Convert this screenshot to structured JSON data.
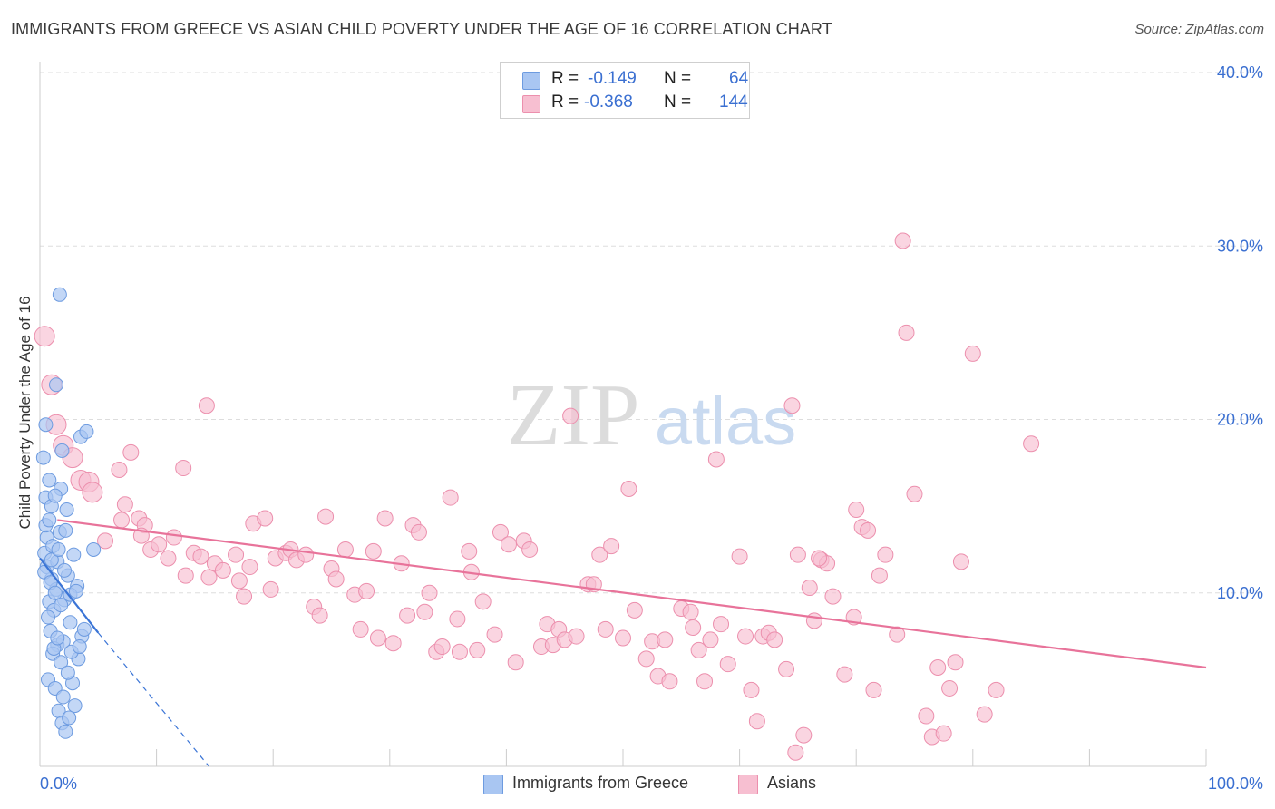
{
  "title": "IMMIGRANTS FROM GREECE VS ASIAN CHILD POVERTY UNDER THE AGE OF 16 CORRELATION CHART",
  "source": "Source: ZipAtlas.com",
  "watermark": {
    "zip": "ZIP",
    "atlas": "atlas"
  },
  "legend": {
    "r_label": "R =",
    "n_label": "N =",
    "rows": [
      {
        "r": "-0.149",
        "n": "64",
        "color": "#a9c6f2",
        "border": "#6d9be0"
      },
      {
        "r": "-0.368",
        "n": "144",
        "color": "#f7bfd1",
        "border": "#ec8fad"
      }
    ]
  },
  "bottom_legend": [
    {
      "label": "Immigrants from Greece",
      "color": "#a9c6f2",
      "border": "#6d9be0"
    },
    {
      "label": "Asians",
      "color": "#f7bfd1",
      "border": "#ec8fad"
    }
  ],
  "chart_data": {
    "type": "scatter",
    "title": "IMMIGRANTS FROM GREECE VS ASIAN CHILD POVERTY UNDER THE AGE OF 16 CORRELATION CHART",
    "xlabel": "",
    "ylabel": "Child Poverty Under the Age of 16",
    "xlim": [
      0,
      100
    ],
    "ylim": [
      0,
      40
    ],
    "x_tick_labels": [
      "0.0%",
      "100.0%"
    ],
    "y_ticks": [
      10,
      20,
      30,
      40
    ],
    "y_tick_labels": [
      "10.0%",
      "20.0%",
      "30.0%",
      "40.0%"
    ],
    "grid": true,
    "series": [
      {
        "name": "Immigrants from Greece",
        "color": "#a9c6f2",
        "stroke": "#6d9be0",
        "trend_color": "#3a74d6",
        "trend": {
          "x0": 0,
          "y0": 12.0,
          "x1": 5,
          "y1": 7.7,
          "dash_to_x": 14.5,
          "dash_to_y": 0
        },
        "points": [
          [
            0.3,
            17.8
          ],
          [
            0.5,
            15.5
          ],
          [
            0.4,
            12.3
          ],
          [
            0.6,
            11.5
          ],
          [
            1.0,
            10.8
          ],
          [
            0.8,
            9.5
          ],
          [
            1.2,
            9.0
          ],
          [
            0.9,
            7.8
          ],
          [
            1.5,
            7.0
          ],
          [
            1.1,
            6.5
          ],
          [
            1.8,
            6.0
          ],
          [
            0.7,
            5.0
          ],
          [
            1.3,
            4.5
          ],
          [
            2.0,
            4.0
          ],
          [
            1.6,
            3.2
          ],
          [
            1.9,
            2.5
          ],
          [
            2.2,
            2.0
          ],
          [
            2.5,
            2.8
          ],
          [
            3.0,
            3.5
          ],
          [
            2.8,
            4.8
          ],
          [
            3.3,
            6.2
          ],
          [
            3.6,
            7.5
          ],
          [
            2.6,
            8.3
          ],
          [
            2.1,
            9.6
          ],
          [
            1.4,
            10.2
          ],
          [
            2.4,
            11.0
          ],
          [
            3.2,
            10.4
          ],
          [
            2.9,
            12.2
          ],
          [
            4.6,
            12.5
          ],
          [
            1.7,
            13.5
          ],
          [
            2.3,
            14.8
          ],
          [
            1.8,
            16.0
          ],
          [
            1.9,
            18.2
          ],
          [
            3.5,
            19.0
          ],
          [
            4.0,
            19.3
          ],
          [
            1.4,
            22.0
          ],
          [
            1.7,
            27.2
          ],
          [
            0.5,
            19.7
          ],
          [
            0.8,
            16.5
          ],
          [
            1.0,
            15.0
          ],
          [
            0.6,
            13.2
          ],
          [
            1.1,
            12.7
          ],
          [
            1.5,
            11.8
          ],
          [
            0.4,
            11.2
          ],
          [
            0.9,
            10.6
          ],
          [
            1.3,
            10.0
          ],
          [
            1.8,
            9.3
          ],
          [
            2.6,
            9.9
          ],
          [
            3.1,
            10.1
          ],
          [
            0.7,
            8.6
          ],
          [
            2.0,
            7.2
          ],
          [
            1.2,
            6.8
          ],
          [
            2.7,
            6.6
          ],
          [
            3.4,
            6.9
          ],
          [
            3.8,
            7.9
          ],
          [
            1.0,
            11.9
          ],
          [
            1.6,
            12.5
          ],
          [
            0.5,
            13.9
          ],
          [
            2.2,
            13.6
          ],
          [
            1.3,
            15.6
          ],
          [
            0.8,
            14.2
          ],
          [
            2.1,
            11.3
          ],
          [
            1.5,
            7.4
          ],
          [
            2.4,
            5.4
          ]
        ]
      },
      {
        "name": "Asians",
        "color": "#f7bfd1",
        "stroke": "#ec8fad",
        "trend_color": "#e8739a",
        "trend": {
          "x0": 1.5,
          "y0": 14.2,
          "x1": 100,
          "y1": 5.7
        },
        "points": [
          [
            0.4,
            24.8
          ],
          [
            1.0,
            22.0
          ],
          [
            1.4,
            19.7
          ],
          [
            2.0,
            18.5
          ],
          [
            2.8,
            17.8
          ],
          [
            3.5,
            16.5
          ],
          [
            4.2,
            16.4
          ],
          [
            4.5,
            15.8
          ],
          [
            6.8,
            17.1
          ],
          [
            7.0,
            14.2
          ],
          [
            7.3,
            15.1
          ],
          [
            8.5,
            14.3
          ],
          [
            7.8,
            18.1
          ],
          [
            9.0,
            13.9
          ],
          [
            8.7,
            13.3
          ],
          [
            9.5,
            12.5
          ],
          [
            10.2,
            12.8
          ],
          [
            11.0,
            12.0
          ],
          [
            12.3,
            17.2
          ],
          [
            12.5,
            11.0
          ],
          [
            13.2,
            12.3
          ],
          [
            13.8,
            12.1
          ],
          [
            14.5,
            10.9
          ],
          [
            14.3,
            20.8
          ],
          [
            15.0,
            11.7
          ],
          [
            15.7,
            11.3
          ],
          [
            16.8,
            12.2
          ],
          [
            17.1,
            10.7
          ],
          [
            17.5,
            9.8
          ],
          [
            18.0,
            11.5
          ],
          [
            18.3,
            14.0
          ],
          [
            19.3,
            14.3
          ],
          [
            20.2,
            12.0
          ],
          [
            21.1,
            12.3
          ],
          [
            21.5,
            12.5
          ],
          [
            22.0,
            11.9
          ],
          [
            22.8,
            12.2
          ],
          [
            23.5,
            9.2
          ],
          [
            24.0,
            8.7
          ],
          [
            24.5,
            14.4
          ],
          [
            25.0,
            11.4
          ],
          [
            25.4,
            10.8
          ],
          [
            26.2,
            12.5
          ],
          [
            27.0,
            9.9
          ],
          [
            27.5,
            7.9
          ],
          [
            28.0,
            10.1
          ],
          [
            28.6,
            12.4
          ],
          [
            29.0,
            7.4
          ],
          [
            29.6,
            14.3
          ],
          [
            30.3,
            7.1
          ],
          [
            31.0,
            11.7
          ],
          [
            32.0,
            13.9
          ],
          [
            32.5,
            13.5
          ],
          [
            33.0,
            8.9
          ],
          [
            33.4,
            10.0
          ],
          [
            34.0,
            6.6
          ],
          [
            34.5,
            6.9
          ],
          [
            35.2,
            15.5
          ],
          [
            36.0,
            6.6
          ],
          [
            36.8,
            12.4
          ],
          [
            37.5,
            6.7
          ],
          [
            37.0,
            11.2
          ],
          [
            38.0,
            9.5
          ],
          [
            39.0,
            7.6
          ],
          [
            39.5,
            13.5
          ],
          [
            40.2,
            12.8
          ],
          [
            40.8,
            6.0
          ],
          [
            41.5,
            13.0
          ],
          [
            42.0,
            12.5
          ],
          [
            43.0,
            6.9
          ],
          [
            43.5,
            8.2
          ],
          [
            44.0,
            7.0
          ],
          [
            44.5,
            7.9
          ],
          [
            45.0,
            7.3
          ],
          [
            45.5,
            20.2
          ],
          [
            46.0,
            7.5
          ],
          [
            47.0,
            10.5
          ],
          [
            47.5,
            10.5
          ],
          [
            48.0,
            12.2
          ],
          [
            48.5,
            7.9
          ],
          [
            49.0,
            12.7
          ],
          [
            50.0,
            7.4
          ],
          [
            50.5,
            16.0
          ],
          [
            51.0,
            9.0
          ],
          [
            52.0,
            6.2
          ],
          [
            52.5,
            7.2
          ],
          [
            53.0,
            5.2
          ],
          [
            53.6,
            7.3
          ],
          [
            54.0,
            4.9
          ],
          [
            55.0,
            9.1
          ],
          [
            55.8,
            8.9
          ],
          [
            56.0,
            8.0
          ],
          [
            57.0,
            4.9
          ],
          [
            57.5,
            7.3
          ],
          [
            58.0,
            17.7
          ],
          [
            58.4,
            8.2
          ],
          [
            59.0,
            5.9
          ],
          [
            60.0,
            12.1
          ],
          [
            60.5,
            7.5
          ],
          [
            61.0,
            4.4
          ],
          [
            61.5,
            2.6
          ],
          [
            62.0,
            7.5
          ],
          [
            62.5,
            7.7
          ],
          [
            63.0,
            7.3
          ],
          [
            64.0,
            5.6
          ],
          [
            64.5,
            20.8
          ],
          [
            65.0,
            12.2
          ],
          [
            65.5,
            1.8
          ],
          [
            64.8,
            0.8
          ],
          [
            66.0,
            10.3
          ],
          [
            66.4,
            8.4
          ],
          [
            67.0,
            11.9
          ],
          [
            67.5,
            11.7
          ],
          [
            68.0,
            9.8
          ],
          [
            69.0,
            5.3
          ],
          [
            69.8,
            8.6
          ],
          [
            70.5,
            13.8
          ],
          [
            70.0,
            14.8
          ],
          [
            71.0,
            13.6
          ],
          [
            71.5,
            4.4
          ],
          [
            72.0,
            11.0
          ],
          [
            72.5,
            12.2
          ],
          [
            73.5,
            7.6
          ],
          [
            74.0,
            30.3
          ],
          [
            74.3,
            25.0
          ],
          [
            75.0,
            15.7
          ],
          [
            76.0,
            2.9
          ],
          [
            76.5,
            1.7
          ],
          [
            77.0,
            5.7
          ],
          [
            77.5,
            1.9
          ],
          [
            78.0,
            4.5
          ],
          [
            78.5,
            6.0
          ],
          [
            79.0,
            11.8
          ],
          [
            80.0,
            23.8
          ],
          [
            81.0,
            3.0
          ],
          [
            82.0,
            4.4
          ],
          [
            85.0,
            18.6
          ],
          [
            66.8,
            12.0
          ],
          [
            56.5,
            6.7
          ],
          [
            35.8,
            8.5
          ],
          [
            31.5,
            8.7
          ],
          [
            19.8,
            10.2
          ],
          [
            11.5,
            13.2
          ],
          [
            5.6,
            13.0
          ]
        ]
      }
    ]
  }
}
